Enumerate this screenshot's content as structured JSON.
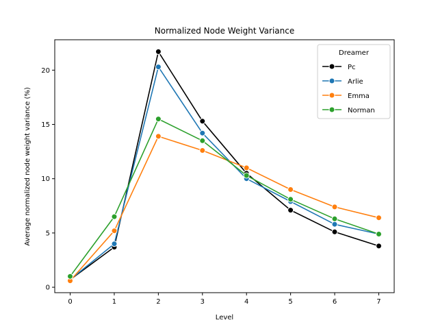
{
  "chart_data": {
    "type": "line",
    "title": "Normalized Node Weight Variance",
    "xlabel": "Level",
    "ylabel": "Average normalized node weight variance (%)",
    "x": [
      0,
      1,
      2,
      3,
      4,
      5,
      6,
      7
    ],
    "xlim": [
      -0.35,
      7.35
    ],
    "ylim": [
      -0.5,
      22.8
    ],
    "xticks": [
      0,
      1,
      2,
      3,
      4,
      5,
      6,
      7
    ],
    "yticks": [
      0,
      5,
      10,
      15,
      20
    ],
    "legend": {
      "title": "Dreamer",
      "position": "top-right"
    },
    "series": [
      {
        "name": "Pc",
        "color": "#000000",
        "values": [
          0.7,
          3.7,
          21.7,
          15.3,
          10.5,
          7.1,
          5.1,
          3.8
        ]
      },
      {
        "name": "Arlie",
        "color": "#1f77b4",
        "values": [
          0.7,
          4.0,
          20.3,
          14.2,
          10.0,
          7.9,
          5.8,
          4.9
        ]
      },
      {
        "name": "Emma",
        "color": "#ff7f0e",
        "values": [
          0.6,
          5.2,
          13.9,
          12.6,
          11.0,
          9.0,
          7.4,
          6.4
        ]
      },
      {
        "name": "Norman",
        "color": "#2ca02c",
        "values": [
          1.0,
          6.5,
          15.5,
          13.5,
          10.3,
          8.1,
          6.3,
          4.9
        ]
      }
    ]
  }
}
